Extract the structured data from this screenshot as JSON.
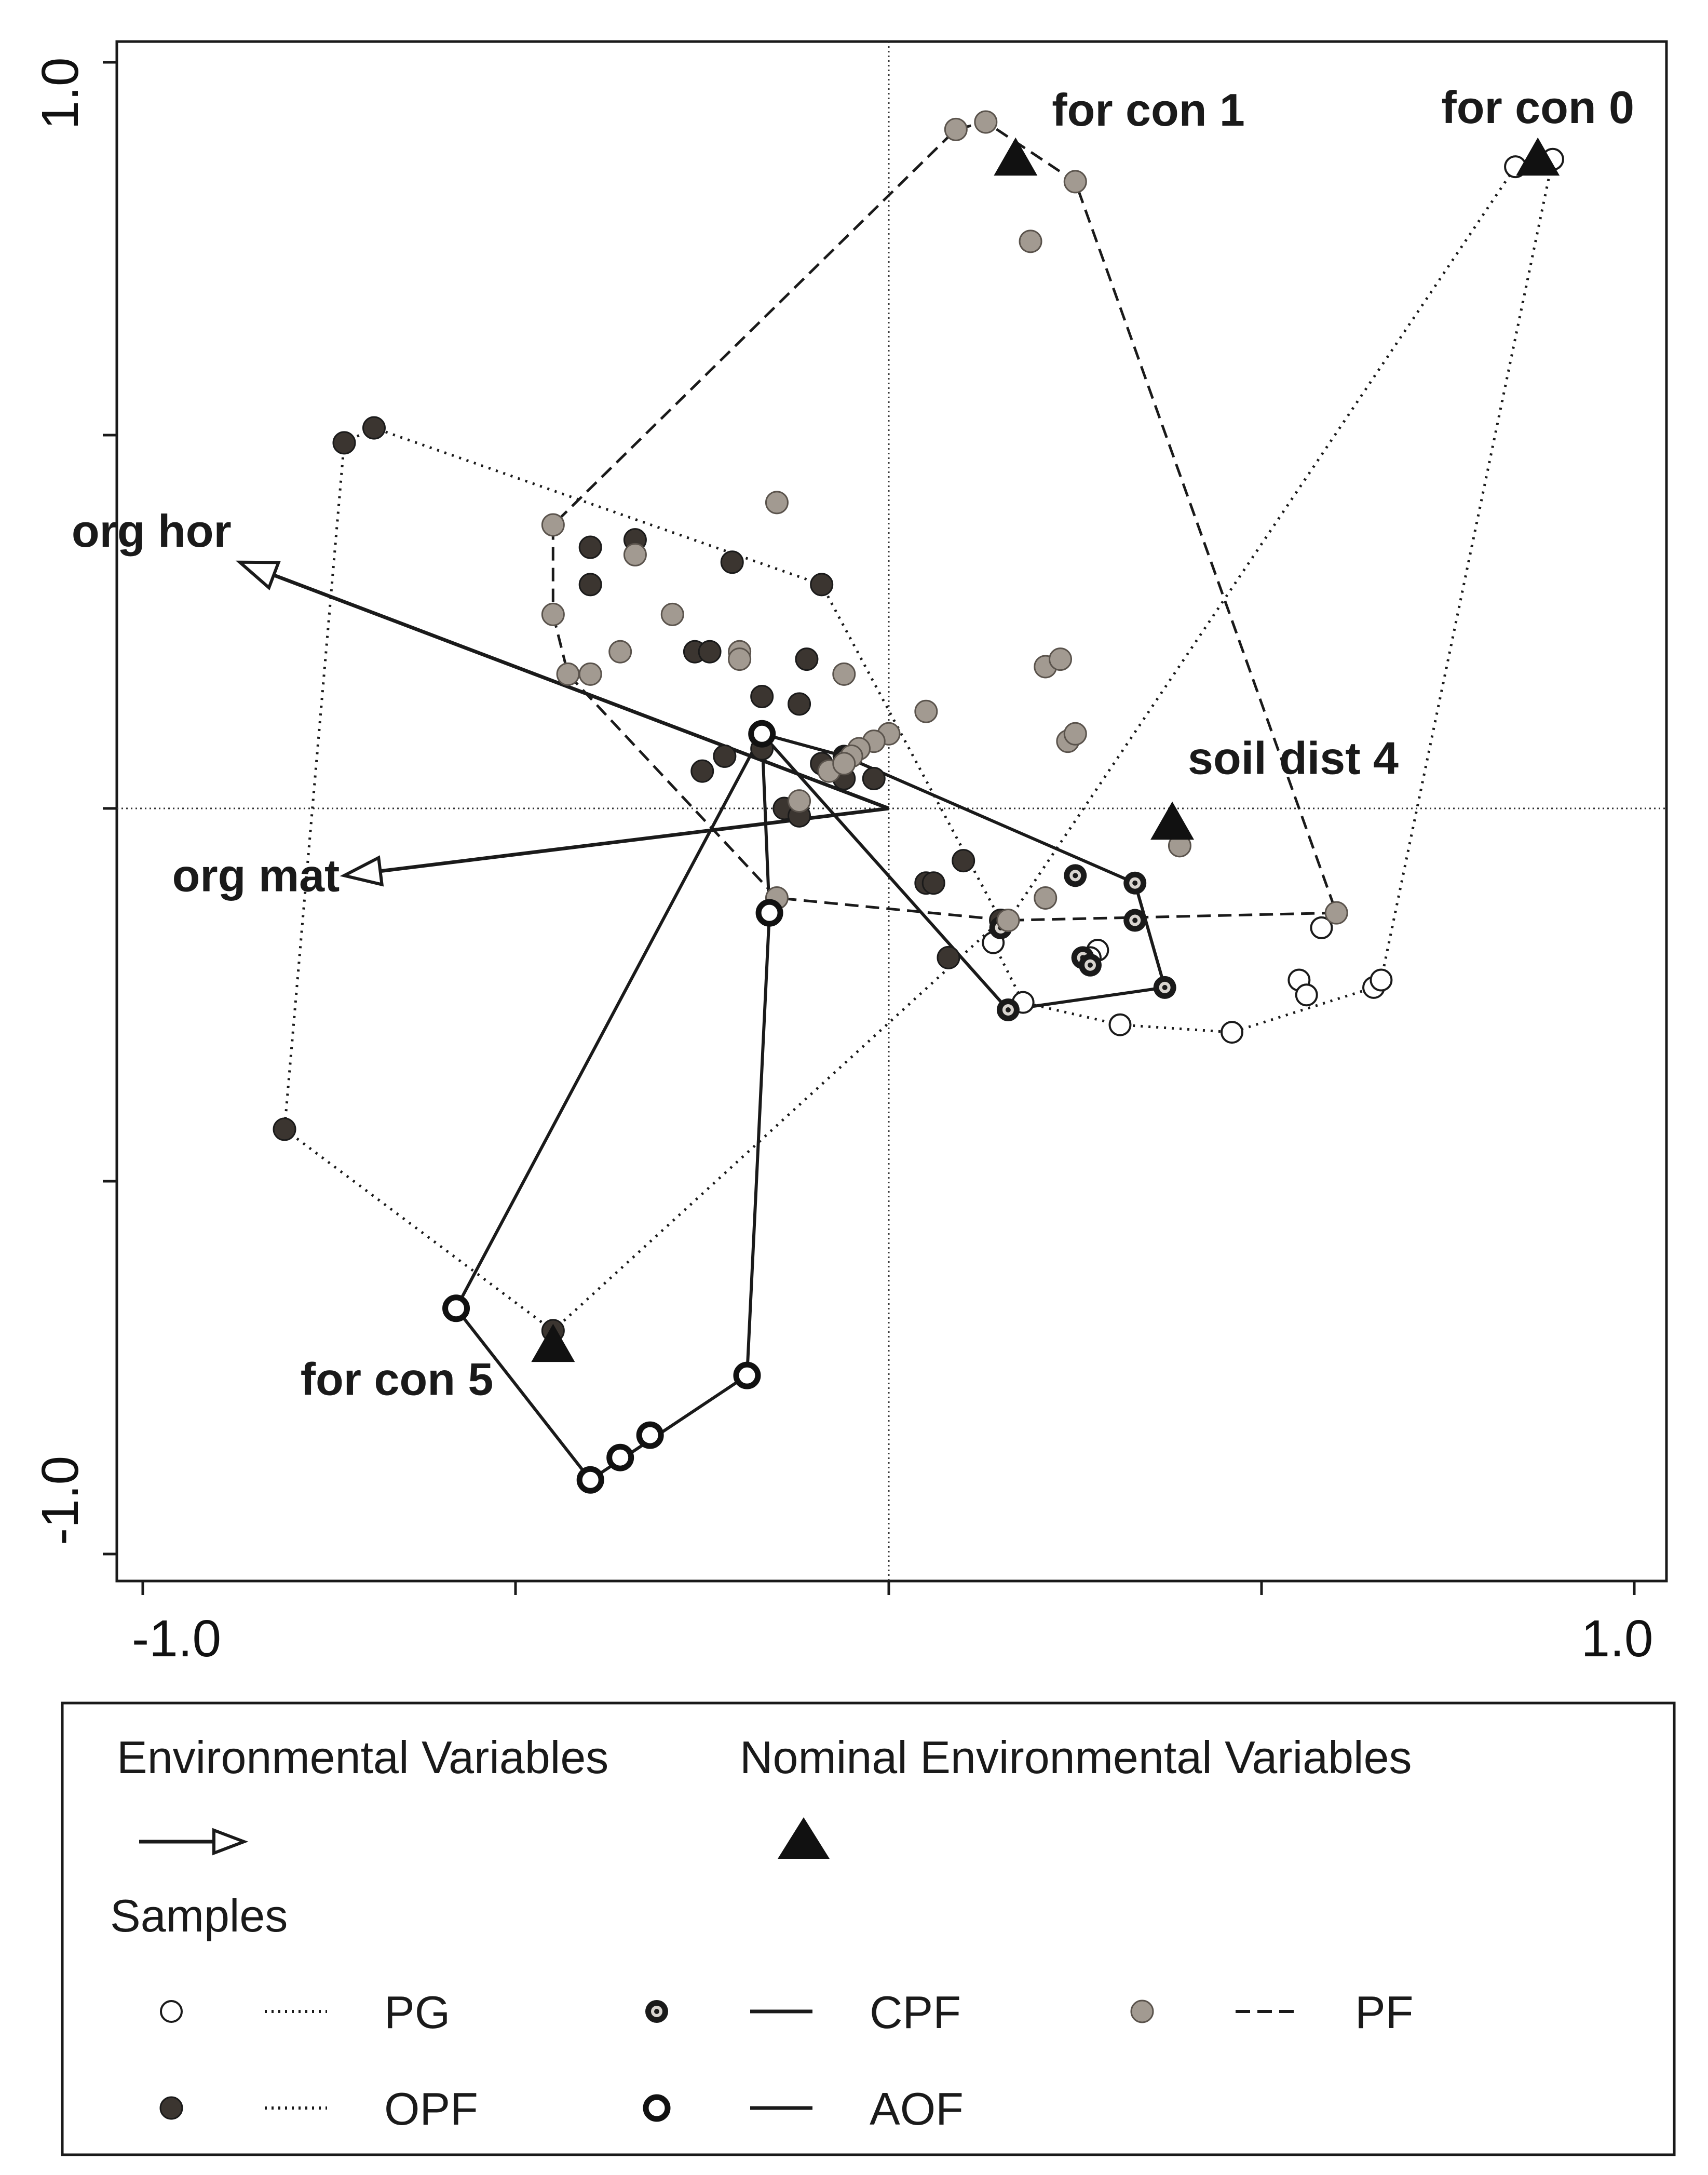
{
  "chart_data": {
    "type": "scatter",
    "title": "",
    "xlabel": "",
    "ylabel": "",
    "xlim": [
      -1.0,
      1.0
    ],
    "ylim": [
      -1.0,
      1.0
    ],
    "x_tick_labels": [
      "-1.0",
      "1.0"
    ],
    "y_tick_labels": [
      "-1.0",
      "1.0"
    ],
    "grid": false,
    "reference_lines": "x=0 and y=0 dotted",
    "environmental_variables": [
      {
        "name": "org hor",
        "x": -0.87,
        "y": 0.33
      },
      {
        "name": "org mat",
        "x": -0.73,
        "y": -0.09
      }
    ],
    "nominal_variables": [
      {
        "name": "for con 1",
        "x": 0.17,
        "y": 0.87
      },
      {
        "name": "for con 0",
        "x": 0.87,
        "y": 0.87
      },
      {
        "name": "soil dist 4",
        "x": 0.38,
        "y": -0.02
      },
      {
        "name": "for con 5",
        "x": -0.45,
        "y": -0.72
      }
    ],
    "series": [
      {
        "name": "PG",
        "marker": "open-circle",
        "line": "dotted",
        "hull": true,
        "points": [
          [
            0.84,
            0.86
          ],
          [
            0.89,
            0.87
          ],
          [
            0.18,
            -0.26
          ],
          [
            0.31,
            -0.29
          ],
          [
            0.46,
            -0.3
          ],
          [
            0.58,
            -0.16
          ],
          [
            0.55,
            -0.23
          ],
          [
            0.56,
            -0.25
          ],
          [
            0.65,
            -0.24
          ],
          [
            0.66,
            -0.23
          ],
          [
            0.28,
            -0.19
          ],
          [
            0.27,
            -0.2
          ],
          [
            0.14,
            -0.18
          ]
        ]
      },
      {
        "name": "OPF",
        "marker": "filled-dark-circle",
        "line": "dotted",
        "hull": true,
        "points": [
          [
            -0.69,
            0.51
          ],
          [
            -0.73,
            0.49
          ],
          [
            -0.81,
            -0.43
          ],
          [
            -0.45,
            -0.7
          ],
          [
            -0.4,
            0.35
          ],
          [
            -0.34,
            0.36
          ],
          [
            -0.21,
            0.33
          ],
          [
            -0.09,
            0.3
          ],
          [
            -0.4,
            0.3
          ],
          [
            -0.26,
            0.21
          ],
          [
            -0.24,
            0.21
          ],
          [
            -0.11,
            0.2
          ],
          [
            -0.17,
            0.15
          ],
          [
            -0.12,
            0.14
          ],
          [
            -0.17,
            0.08
          ],
          [
            -0.09,
            0.06
          ],
          [
            -0.06,
            0.04
          ],
          [
            -0.02,
            0.04
          ],
          [
            -0.22,
            0.07
          ],
          [
            -0.25,
            0.05
          ],
          [
            -0.14,
            0.0
          ],
          [
            -0.12,
            -0.01
          ],
          [
            0.1,
            -0.07
          ],
          [
            0.05,
            -0.1
          ],
          [
            0.06,
            -0.1
          ],
          [
            0.08,
            -0.2
          ],
          [
            0.15,
            -0.15
          ]
        ]
      },
      {
        "name": "CPF",
        "marker": "bullseye",
        "line": "solid",
        "hull": true,
        "points": [
          [
            -0.17,
            0.1
          ],
          [
            -0.06,
            0.07
          ],
          [
            0.25,
            -0.09
          ],
          [
            0.33,
            -0.1
          ],
          [
            0.33,
            -0.15
          ],
          [
            0.15,
            -0.16
          ],
          [
            0.26,
            -0.2
          ],
          [
            0.27,
            -0.21
          ],
          [
            0.37,
            -0.24
          ],
          [
            0.16,
            -0.27
          ]
        ]
      },
      {
        "name": "PF",
        "marker": "filled-gray-circle",
        "line": "dashed",
        "hull": true,
        "points": [
          [
            0.13,
            0.92
          ],
          [
            0.09,
            0.91
          ],
          [
            0.25,
            0.84
          ],
          [
            0.19,
            0.76
          ],
          [
            -0.15,
            0.41
          ],
          [
            -0.45,
            0.38
          ],
          [
            -0.34,
            0.34
          ],
          [
            -0.45,
            0.26
          ],
          [
            -0.29,
            0.26
          ],
          [
            -0.43,
            0.18
          ],
          [
            -0.36,
            0.21
          ],
          [
            -0.2,
            0.21
          ],
          [
            -0.4,
            0.18
          ],
          [
            -0.06,
            0.18
          ],
          [
            -0.2,
            0.2
          ],
          [
            0.21,
            0.19
          ],
          [
            0.23,
            0.2
          ],
          [
            0.05,
            0.13
          ],
          [
            0.0,
            0.1
          ],
          [
            -0.02,
            0.09
          ],
          [
            -0.04,
            0.08
          ],
          [
            -0.05,
            0.07
          ],
          [
            0.24,
            0.09
          ],
          [
            0.25,
            0.1
          ],
          [
            -0.08,
            0.05
          ],
          [
            -0.06,
            0.06
          ],
          [
            -0.12,
            0.01
          ],
          [
            -0.15,
            -0.12
          ],
          [
            0.21,
            -0.12
          ],
          [
            0.16,
            -0.15
          ],
          [
            0.39,
            -0.05
          ],
          [
            0.6,
            -0.14
          ]
        ]
      },
      {
        "name": "AOF",
        "marker": "thick-open-circle",
        "line": "solid",
        "hull": true,
        "points": [
          [
            -0.17,
            0.1
          ],
          [
            -0.58,
            -0.67
          ],
          [
            -0.16,
            -0.14
          ],
          [
            -0.19,
            -0.76
          ],
          [
            -0.32,
            -0.84
          ],
          [
            -0.36,
            -0.87
          ],
          [
            -0.4,
            -0.9
          ]
        ]
      }
    ]
  },
  "legend": {
    "env_title": "Environmental Variables",
    "nominal_title": "Nominal Environmental Variables",
    "samples_title": "Samples",
    "entries": [
      {
        "name": "PG",
        "marker": "open-circle",
        "line": "dotted"
      },
      {
        "name": "CPF",
        "marker": "bullseye",
        "line": "solid"
      },
      {
        "name": "PF",
        "marker": "filled-gray-circle",
        "line": "dashed"
      },
      {
        "name": "OPF",
        "marker": "filled-dark-circle",
        "line": "dotted"
      },
      {
        "name": "AOF",
        "marker": "thick-open-circle",
        "line": "solid"
      }
    ]
  },
  "colors": {
    "line": "#1a1a1a",
    "dark_fill": "#3b3530",
    "gray_fill": "#a29a91",
    "open_fill": "#ffffff"
  }
}
